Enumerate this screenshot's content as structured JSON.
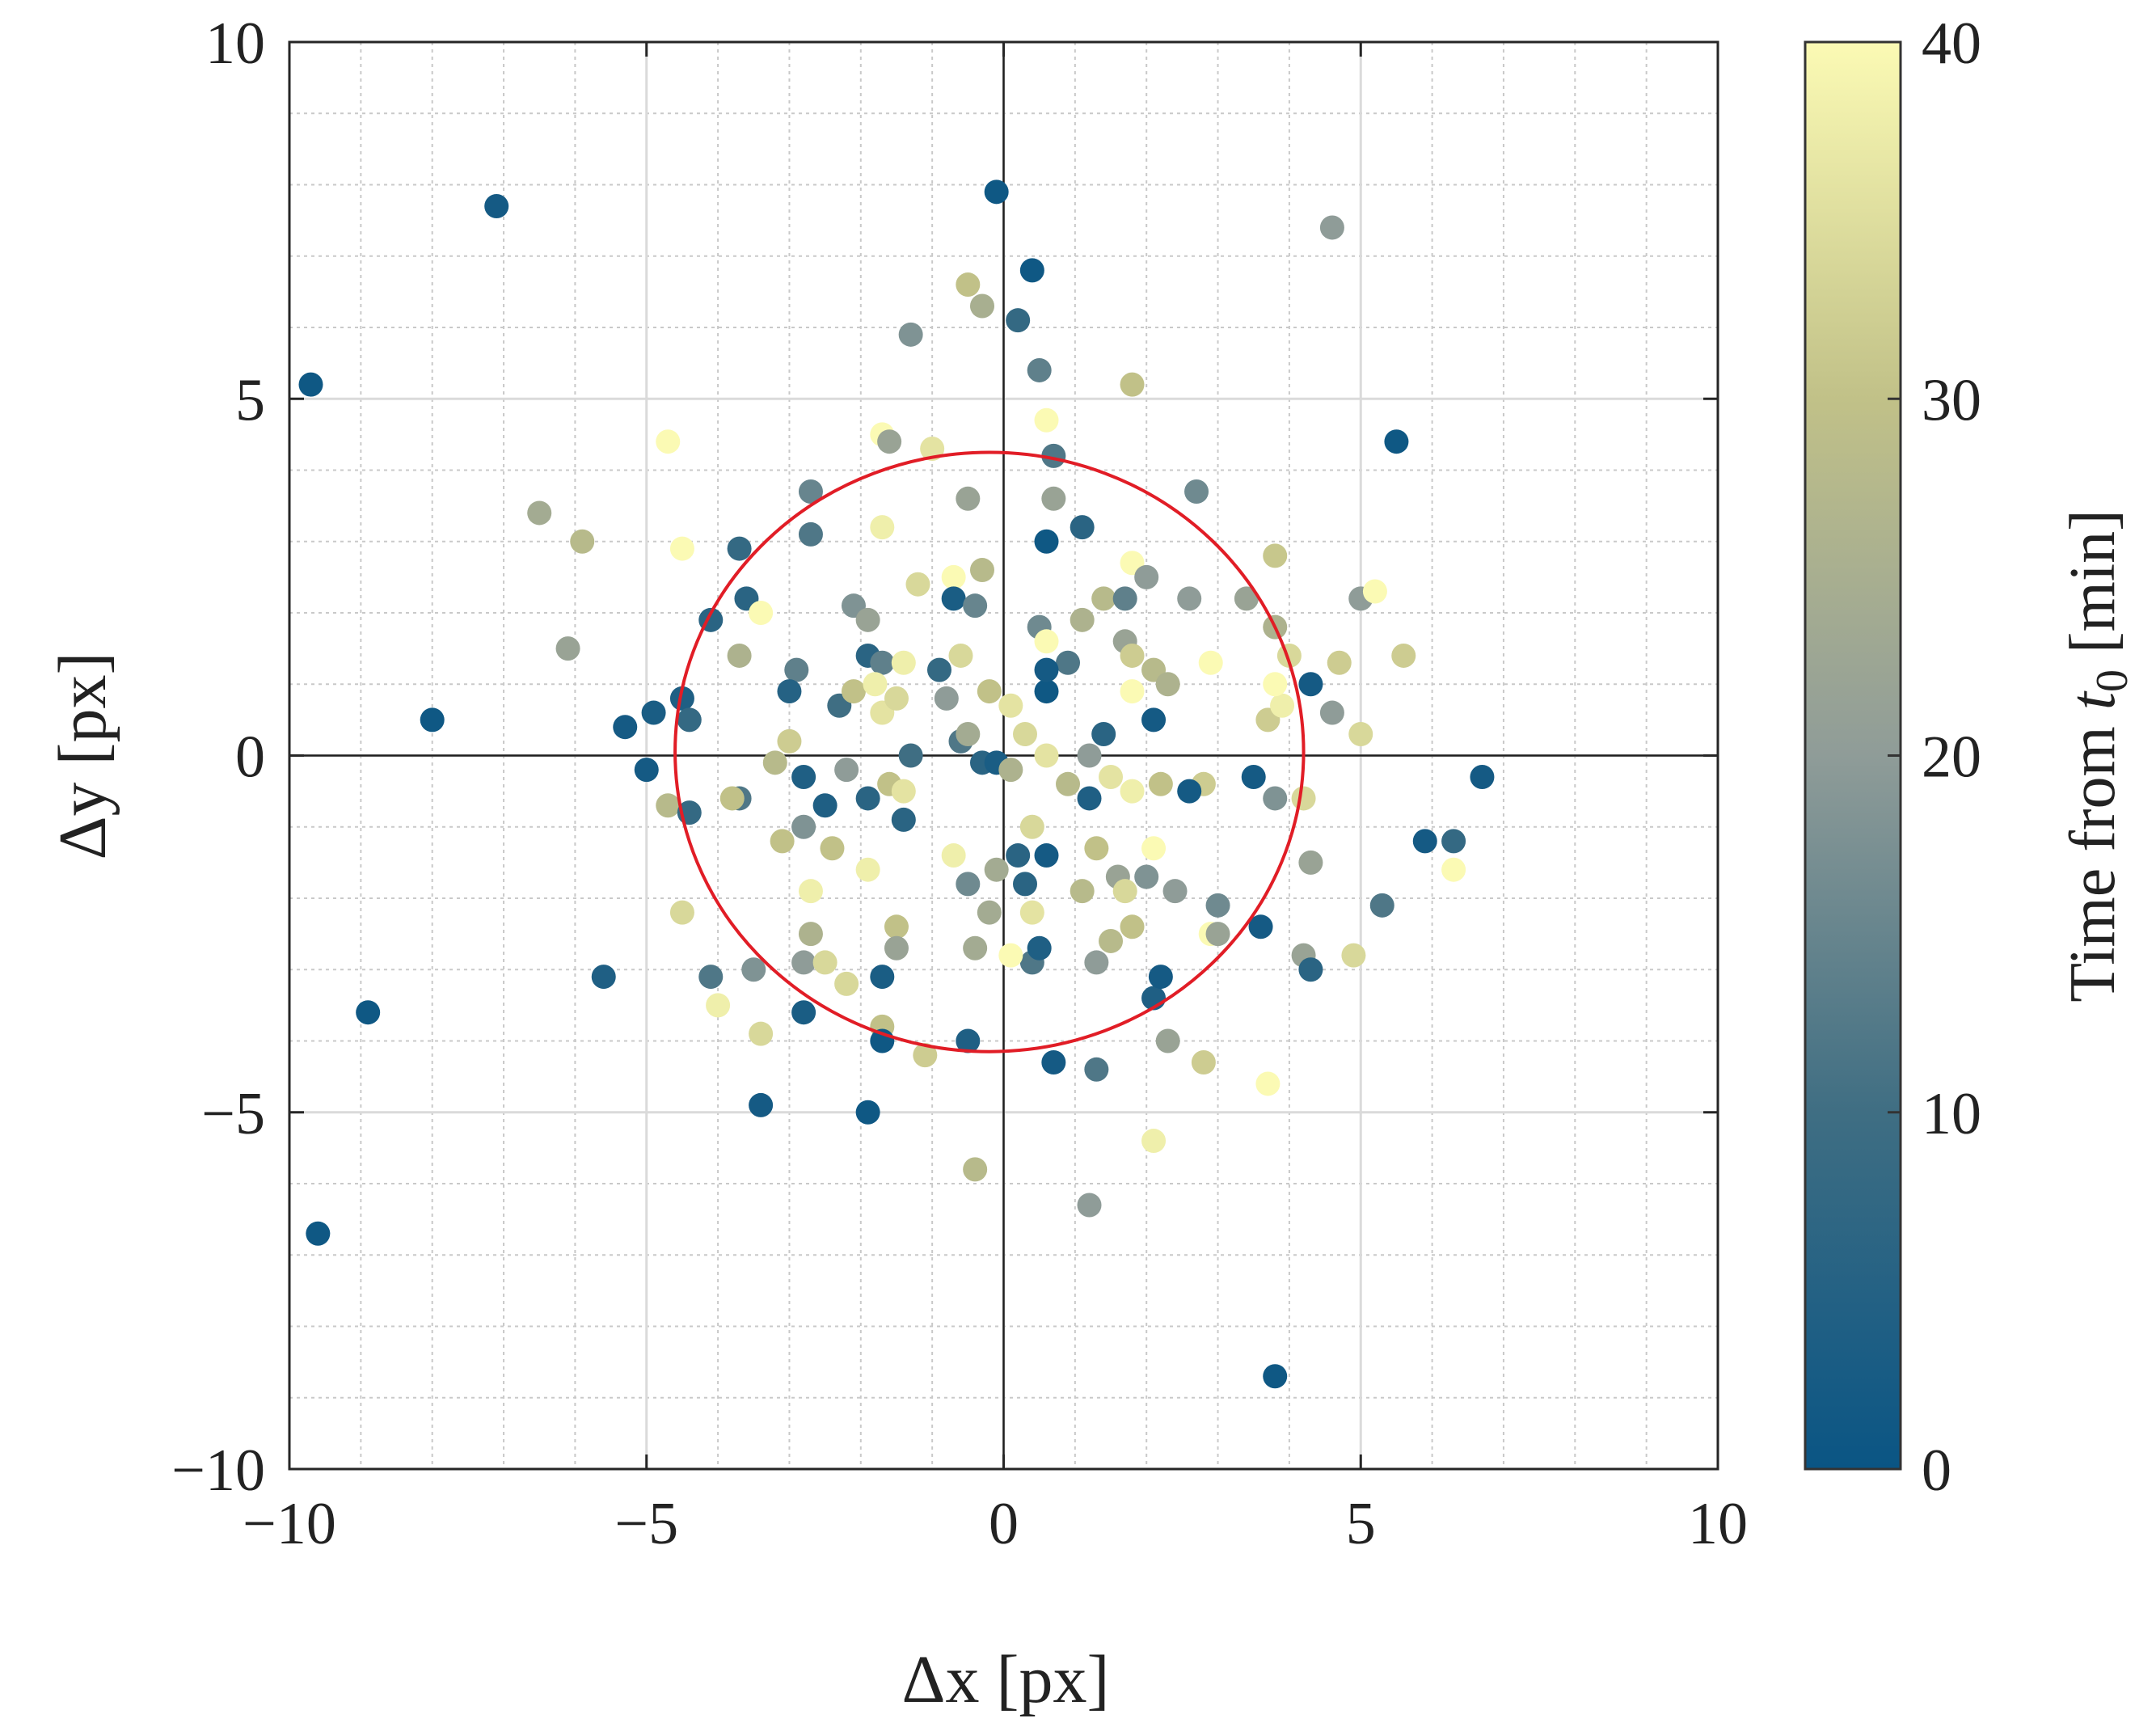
{
  "chart_data": {
    "type": "scatter",
    "xlabel": "Δx [px]",
    "ylabel": "Δy [px]",
    "xlim": [
      -10,
      10
    ],
    "ylim": [
      -10,
      10
    ],
    "xticks": [
      -10,
      -5,
      0,
      5,
      10
    ],
    "yticks": [
      -10,
      -5,
      0,
      5,
      10
    ],
    "xtick_labels": [
      "−10",
      "−5",
      "0",
      "5",
      "10"
    ],
    "ytick_labels": [
      "−10",
      "−5",
      "0",
      "5",
      "10"
    ],
    "minor_step": 1,
    "grid": true,
    "colorbar": {
      "label_prefix": "Time from ",
      "label_var": "t",
      "label_sub": "0",
      "label_suffix": " [min]",
      "range": [
        0,
        40
      ],
      "ticks": [
        0,
        10,
        20,
        30,
        40
      ],
      "tick_labels": [
        "0",
        "10",
        "20",
        "30",
        "40"
      ],
      "colormap": [
        "#0a5584",
        "#3f6e83",
        "#8f9c98",
        "#c1c188",
        "#fbfab4"
      ]
    },
    "circle": {
      "center": [
        -0.2,
        0.05
      ],
      "radius_x": 4.4,
      "radius_y": 4.2,
      "color": "#e11d26"
    },
    "points": [
      {
        "x": -9.7,
        "y": 5.2,
        "t": 1
      },
      {
        "x": -7.1,
        "y": 7.7,
        "t": 2
      },
      {
        "x": -0.1,
        "y": 7.9,
        "t": 1
      },
      {
        "x": 0.4,
        "y": 6.8,
        "t": 1
      },
      {
        "x": 0.2,
        "y": 6.1,
        "t": 8
      },
      {
        "x": -0.5,
        "y": 6.6,
        "t": 30
      },
      {
        "x": -0.3,
        "y": 6.3,
        "t": 25
      },
      {
        "x": -1.3,
        "y": 5.9,
        "t": 18
      },
      {
        "x": 0.5,
        "y": 5.4,
        "t": 14
      },
      {
        "x": 1.8,
        "y": 5.2,
        "t": 30
      },
      {
        "x": 4.6,
        "y": 7.4,
        "t": 20
      },
      {
        "x": 5.5,
        "y": 4.4,
        "t": 1
      },
      {
        "x": -4.7,
        "y": 4.4,
        "t": 40
      },
      {
        "x": -1.7,
        "y": 4.5,
        "t": 40
      },
      {
        "x": -1.6,
        "y": 4.4,
        "t": 22
      },
      {
        "x": -1.0,
        "y": 4.3,
        "t": 36
      },
      {
        "x": 0.6,
        "y": 4.7,
        "t": 40
      },
      {
        "x": 0.7,
        "y": 4.2,
        "t": 12
      },
      {
        "x": -6.5,
        "y": 3.4,
        "t": 24
      },
      {
        "x": -5.9,
        "y": 3.0,
        "t": 28
      },
      {
        "x": -4.5,
        "y": 2.9,
        "t": 40
      },
      {
        "x": -3.7,
        "y": 2.9,
        "t": 8
      },
      {
        "x": -2.7,
        "y": 3.7,
        "t": 15
      },
      {
        "x": -2.7,
        "y": 3.1,
        "t": 12
      },
      {
        "x": -1.7,
        "y": 3.2,
        "t": 38
      },
      {
        "x": -0.5,
        "y": 3.6,
        "t": 22
      },
      {
        "x": 0.6,
        "y": 3.0,
        "t": 1
      },
      {
        "x": 0.7,
        "y": 3.6,
        "t": 22
      },
      {
        "x": 1.1,
        "y": 3.2,
        "t": 6
      },
      {
        "x": 2.7,
        "y": 3.7,
        "t": 16
      },
      {
        "x": 3.8,
        "y": 2.8,
        "t": 31
      },
      {
        "x": -6.1,
        "y": 1.5,
        "t": 22
      },
      {
        "x": -4.1,
        "y": 1.9,
        "t": 6
      },
      {
        "x": -3.6,
        "y": 2.2,
        "t": 6
      },
      {
        "x": -3.4,
        "y": 2.0,
        "t": 40
      },
      {
        "x": -2.1,
        "y": 2.1,
        "t": 18
      },
      {
        "x": -1.9,
        "y": 1.9,
        "t": 22
      },
      {
        "x": -1.2,
        "y": 2.4,
        "t": 34
      },
      {
        "x": -0.7,
        "y": 2.5,
        "t": 40
      },
      {
        "x": -0.7,
        "y": 2.2,
        "t": 3
      },
      {
        "x": -0.4,
        "y": 2.1,
        "t": 15
      },
      {
        "x": -0.3,
        "y": 2.6,
        "t": 28
      },
      {
        "x": 1.1,
        "y": 1.9,
        "t": 26
      },
      {
        "x": 1.4,
        "y": 2.2,
        "t": 28
      },
      {
        "x": 1.7,
        "y": 2.2,
        "t": 14
      },
      {
        "x": 1.8,
        "y": 2.7,
        "t": 40
      },
      {
        "x": 2.0,
        "y": 2.5,
        "t": 20
      },
      {
        "x": 2.6,
        "y": 2.2,
        "t": 20
      },
      {
        "x": 3.4,
        "y": 2.2,
        "t": 22
      },
      {
        "x": 3.8,
        "y": 1.8,
        "t": 26
      },
      {
        "x": 5.0,
        "y": 2.2,
        "t": 20
      },
      {
        "x": 5.2,
        "y": 2.3,
        "t": 40
      },
      {
        "x": -3.7,
        "y": 1.4,
        "t": 26
      },
      {
        "x": -1.9,
        "y": 1.4,
        "t": 6
      },
      {
        "x": -1.7,
        "y": 1.3,
        "t": 14
      },
      {
        "x": -1.4,
        "y": 1.3,
        "t": 38
      },
      {
        "x": -0.9,
        "y": 1.2,
        "t": 8
      },
      {
        "x": -0.6,
        "y": 1.4,
        "t": 34
      },
      {
        "x": 0.5,
        "y": 1.8,
        "t": 16
      },
      {
        "x": 0.6,
        "y": 1.6,
        "t": 40
      },
      {
        "x": 0.9,
        "y": 1.3,
        "t": 12
      },
      {
        "x": 1.7,
        "y": 1.6,
        "t": 22
      },
      {
        "x": 1.8,
        "y": 1.4,
        "t": 32
      },
      {
        "x": 2.1,
        "y": 1.2,
        "t": 28
      },
      {
        "x": 2.9,
        "y": 1.3,
        "t": 40
      },
      {
        "x": 4.0,
        "y": 1.4,
        "t": 34
      },
      {
        "x": 4.3,
        "y": 1.0,
        "t": 2
      },
      {
        "x": 4.7,
        "y": 1.3,
        "t": 32
      },
      {
        "x": 5.6,
        "y": 1.4,
        "t": 32
      },
      {
        "x": -8.0,
        "y": 0.5,
        "t": 1
      },
      {
        "x": -5.3,
        "y": 0.4,
        "t": 2
      },
      {
        "x": -4.9,
        "y": 0.6,
        "t": 3
      },
      {
        "x": -4.5,
        "y": 0.8,
        "t": 4
      },
      {
        "x": -4.4,
        "y": 0.5,
        "t": 8
      },
      {
        "x": -2.9,
        "y": 1.2,
        "t": 14
      },
      {
        "x": -3.0,
        "y": 0.9,
        "t": 5
      },
      {
        "x": -2.3,
        "y": 0.7,
        "t": 10
      },
      {
        "x": -2.1,
        "y": 0.9,
        "t": 30
      },
      {
        "x": -1.8,
        "y": 1.0,
        "t": 38
      },
      {
        "x": -1.7,
        "y": 0.6,
        "t": 36
      },
      {
        "x": -1.5,
        "y": 0.8,
        "t": 34
      },
      {
        "x": -0.8,
        "y": 0.8,
        "t": 20
      },
      {
        "x": -0.2,
        "y": 0.9,
        "t": 30
      },
      {
        "x": 0.1,
        "y": 0.7,
        "t": 36
      },
      {
        "x": 0.6,
        "y": 0.9,
        "t": 1
      },
      {
        "x": 0.6,
        "y": 1.2,
        "t": 2
      },
      {
        "x": 1.4,
        "y": 0.3,
        "t": 6
      },
      {
        "x": 1.8,
        "y": 0.9,
        "t": 40
      },
      {
        "x": 2.1,
        "y": 0.5,
        "t": 2
      },
      {
        "x": 2.3,
        "y": 1.0,
        "t": 26
      },
      {
        "x": 3.7,
        "y": 0.5,
        "t": 32
      },
      {
        "x": 3.9,
        "y": 0.7,
        "t": 38
      },
      {
        "x": 3.8,
        "y": 1.0,
        "t": 40
      },
      {
        "x": 4.6,
        "y": 0.6,
        "t": 20
      },
      {
        "x": 5.0,
        "y": 0.3,
        "t": 34
      },
      {
        "x": -5.0,
        "y": -0.2,
        "t": 2
      },
      {
        "x": -4.7,
        "y": -0.7,
        "t": 28
      },
      {
        "x": -4.4,
        "y": -0.8,
        "t": 8
      },
      {
        "x": -3.7,
        "y": -0.6,
        "t": 12
      },
      {
        "x": -3.8,
        "y": -0.6,
        "t": 30
      },
      {
        "x": -3.2,
        "y": -0.1,
        "t": 28
      },
      {
        "x": -3.0,
        "y": 0.2,
        "t": 32
      },
      {
        "x": -2.8,
        "y": -0.3,
        "t": 4
      },
      {
        "x": -2.5,
        "y": -0.7,
        "t": 4
      },
      {
        "x": -2.2,
        "y": -0.2,
        "t": 20
      },
      {
        "x": -1.9,
        "y": -0.6,
        "t": 6
      },
      {
        "x": -1.6,
        "y": -0.4,
        "t": 30
      },
      {
        "x": -1.4,
        "y": -0.5,
        "t": 36
      },
      {
        "x": -1.3,
        "y": 0.0,
        "t": 10
      },
      {
        "x": -0.6,
        "y": 0.2,
        "t": 12
      },
      {
        "x": -0.5,
        "y": 0.3,
        "t": 24
      },
      {
        "x": -0.3,
        "y": -0.1,
        "t": 6
      },
      {
        "x": -0.1,
        "y": -0.1,
        "t": 3
      },
      {
        "x": 0.1,
        "y": -0.2,
        "t": 26
      },
      {
        "x": 0.3,
        "y": 0.3,
        "t": 34
      },
      {
        "x": 0.6,
        "y": 0.0,
        "t": 36
      },
      {
        "x": 0.9,
        "y": -0.4,
        "t": 28
      },
      {
        "x": 1.2,
        "y": 0.0,
        "t": 20
      },
      {
        "x": 1.5,
        "y": -0.3,
        "t": 36
      },
      {
        "x": 1.2,
        "y": -0.6,
        "t": 4
      },
      {
        "x": 1.8,
        "y": -0.5,
        "t": 38
      },
      {
        "x": 2.2,
        "y": -0.4,
        "t": 30
      },
      {
        "x": 2.8,
        "y": -0.4,
        "t": 32
      },
      {
        "x": 3.5,
        "y": -0.3,
        "t": 2
      },
      {
        "x": 3.8,
        "y": -0.6,
        "t": 18
      },
      {
        "x": 4.2,
        "y": -0.6,
        "t": 34
      },
      {
        "x": 6.7,
        "y": -0.3,
        "t": 2
      },
      {
        "x": -5.6,
        "y": -3.1,
        "t": 4
      },
      {
        "x": -8.9,
        "y": -3.6,
        "t": 1
      },
      {
        "x": -9.6,
        "y": -6.7,
        "t": 1
      },
      {
        "x": -4.5,
        "y": -2.2,
        "t": 34
      },
      {
        "x": -4.1,
        "y": -3.1,
        "t": 12
      },
      {
        "x": -4.0,
        "y": -3.5,
        "t": 38
      },
      {
        "x": -3.5,
        "y": -3.0,
        "t": 18
      },
      {
        "x": -3.4,
        "y": -3.9,
        "t": 34
      },
      {
        "x": -3.1,
        "y": -1.2,
        "t": 30
      },
      {
        "x": -2.8,
        "y": -1.0,
        "t": 18
      },
      {
        "x": -2.8,
        "y": -2.9,
        "t": 20
      },
      {
        "x": -2.7,
        "y": -1.9,
        "t": 38
      },
      {
        "x": -2.7,
        "y": -2.5,
        "t": 26
      },
      {
        "x": -2.8,
        "y": -3.6,
        "t": 3
      },
      {
        "x": -2.5,
        "y": -2.9,
        "t": 34
      },
      {
        "x": -2.4,
        "y": -1.3,
        "t": 30
      },
      {
        "x": -2.2,
        "y": -3.2,
        "t": 34
      },
      {
        "x": -1.9,
        "y": -1.6,
        "t": 38
      },
      {
        "x": -1.7,
        "y": -3.1,
        "t": 3
      },
      {
        "x": -1.7,
        "y": -3.8,
        "t": 30
      },
      {
        "x": -1.7,
        "y": -4.0,
        "t": 1
      },
      {
        "x": -1.5,
        "y": -2.4,
        "t": 30
      },
      {
        "x": -1.5,
        "y": -2.7,
        "t": 22
      },
      {
        "x": -1.4,
        "y": -0.9,
        "t": 6
      },
      {
        "x": -1.1,
        "y": -4.2,
        "t": 32
      },
      {
        "x": -1.9,
        "y": -5.0,
        "t": 1
      },
      {
        "x": -3.4,
        "y": -4.9,
        "t": 2
      },
      {
        "x": -0.7,
        "y": -1.4,
        "t": 38
      },
      {
        "x": -0.5,
        "y": -1.8,
        "t": 16
      },
      {
        "x": -0.4,
        "y": -2.7,
        "t": 24
      },
      {
        "x": -0.5,
        "y": -4.0,
        "t": 4
      },
      {
        "x": -0.2,
        "y": -2.2,
        "t": 24
      },
      {
        "x": -0.1,
        "y": -1.6,
        "t": 24
      },
      {
        "x": 0.2,
        "y": -1.4,
        "t": 6
      },
      {
        "x": 0.3,
        "y": -1.8,
        "t": 6
      },
      {
        "x": 0.4,
        "y": -2.2,
        "t": 36
      },
      {
        "x": 0.4,
        "y": -2.9,
        "t": 12
      },
      {
        "x": 0.5,
        "y": -2.7,
        "t": 4
      },
      {
        "x": 0.4,
        "y": -1.0,
        "t": 34
      },
      {
        "x": 0.6,
        "y": -1.4,
        "t": 2
      },
      {
        "x": 0.1,
        "y": -2.8,
        "t": 40
      },
      {
        "x": 0.7,
        "y": -4.3,
        "t": 2
      },
      {
        "x": -0.4,
        "y": -5.8,
        "t": 28
      },
      {
        "x": 1.1,
        "y": -1.9,
        "t": 28
      },
      {
        "x": 1.3,
        "y": -2.9,
        "t": 20
      },
      {
        "x": 1.3,
        "y": -4.4,
        "t": 12
      },
      {
        "x": 1.3,
        "y": -1.3,
        "t": 30
      },
      {
        "x": 1.5,
        "y": -2.6,
        "t": 28
      },
      {
        "x": 1.6,
        "y": -1.7,
        "t": 22
      },
      {
        "x": 1.7,
        "y": -1.9,
        "t": 34
      },
      {
        "x": 1.8,
        "y": -2.4,
        "t": 30
      },
      {
        "x": 2.0,
        "y": -1.7,
        "t": 18
      },
      {
        "x": 2.1,
        "y": -1.3,
        "t": 40
      },
      {
        "x": 2.1,
        "y": -3.4,
        "t": 4
      },
      {
        "x": 2.2,
        "y": -3.1,
        "t": 2
      },
      {
        "x": 2.4,
        "y": -1.9,
        "t": 20
      },
      {
        "x": 2.3,
        "y": -4.0,
        "t": 22
      },
      {
        "x": 2.1,
        "y": -5.4,
        "t": 38
      },
      {
        "x": 1.2,
        "y": -6.3,
        "t": 20
      },
      {
        "x": 2.8,
        "y": -4.3,
        "t": 32
      },
      {
        "x": 2.9,
        "y": -2.5,
        "t": 40
      },
      {
        "x": 3.0,
        "y": -2.5,
        "t": 22
      },
      {
        "x": 3.0,
        "y": -2.1,
        "t": 16
      },
      {
        "x": 2.6,
        "y": -0.5,
        "t": 2
      },
      {
        "x": 3.6,
        "y": -2.4,
        "t": 2
      },
      {
        "x": 3.7,
        "y": -4.6,
        "t": 40
      },
      {
        "x": 4.3,
        "y": -1.5,
        "t": 22
      },
      {
        "x": 4.2,
        "y": -2.8,
        "t": 22
      },
      {
        "x": 4.3,
        "y": -3.0,
        "t": 6
      },
      {
        "x": 4.9,
        "y": -2.8,
        "t": 34
      },
      {
        "x": 5.3,
        "y": -2.1,
        "t": 12
      },
      {
        "x": 5.9,
        "y": -1.2,
        "t": 2
      },
      {
        "x": 6.3,
        "y": -1.2,
        "t": 8
      },
      {
        "x": 6.3,
        "y": -1.6,
        "t": 40
      },
      {
        "x": 3.8,
        "y": -8.7,
        "t": 1
      }
    ]
  }
}
